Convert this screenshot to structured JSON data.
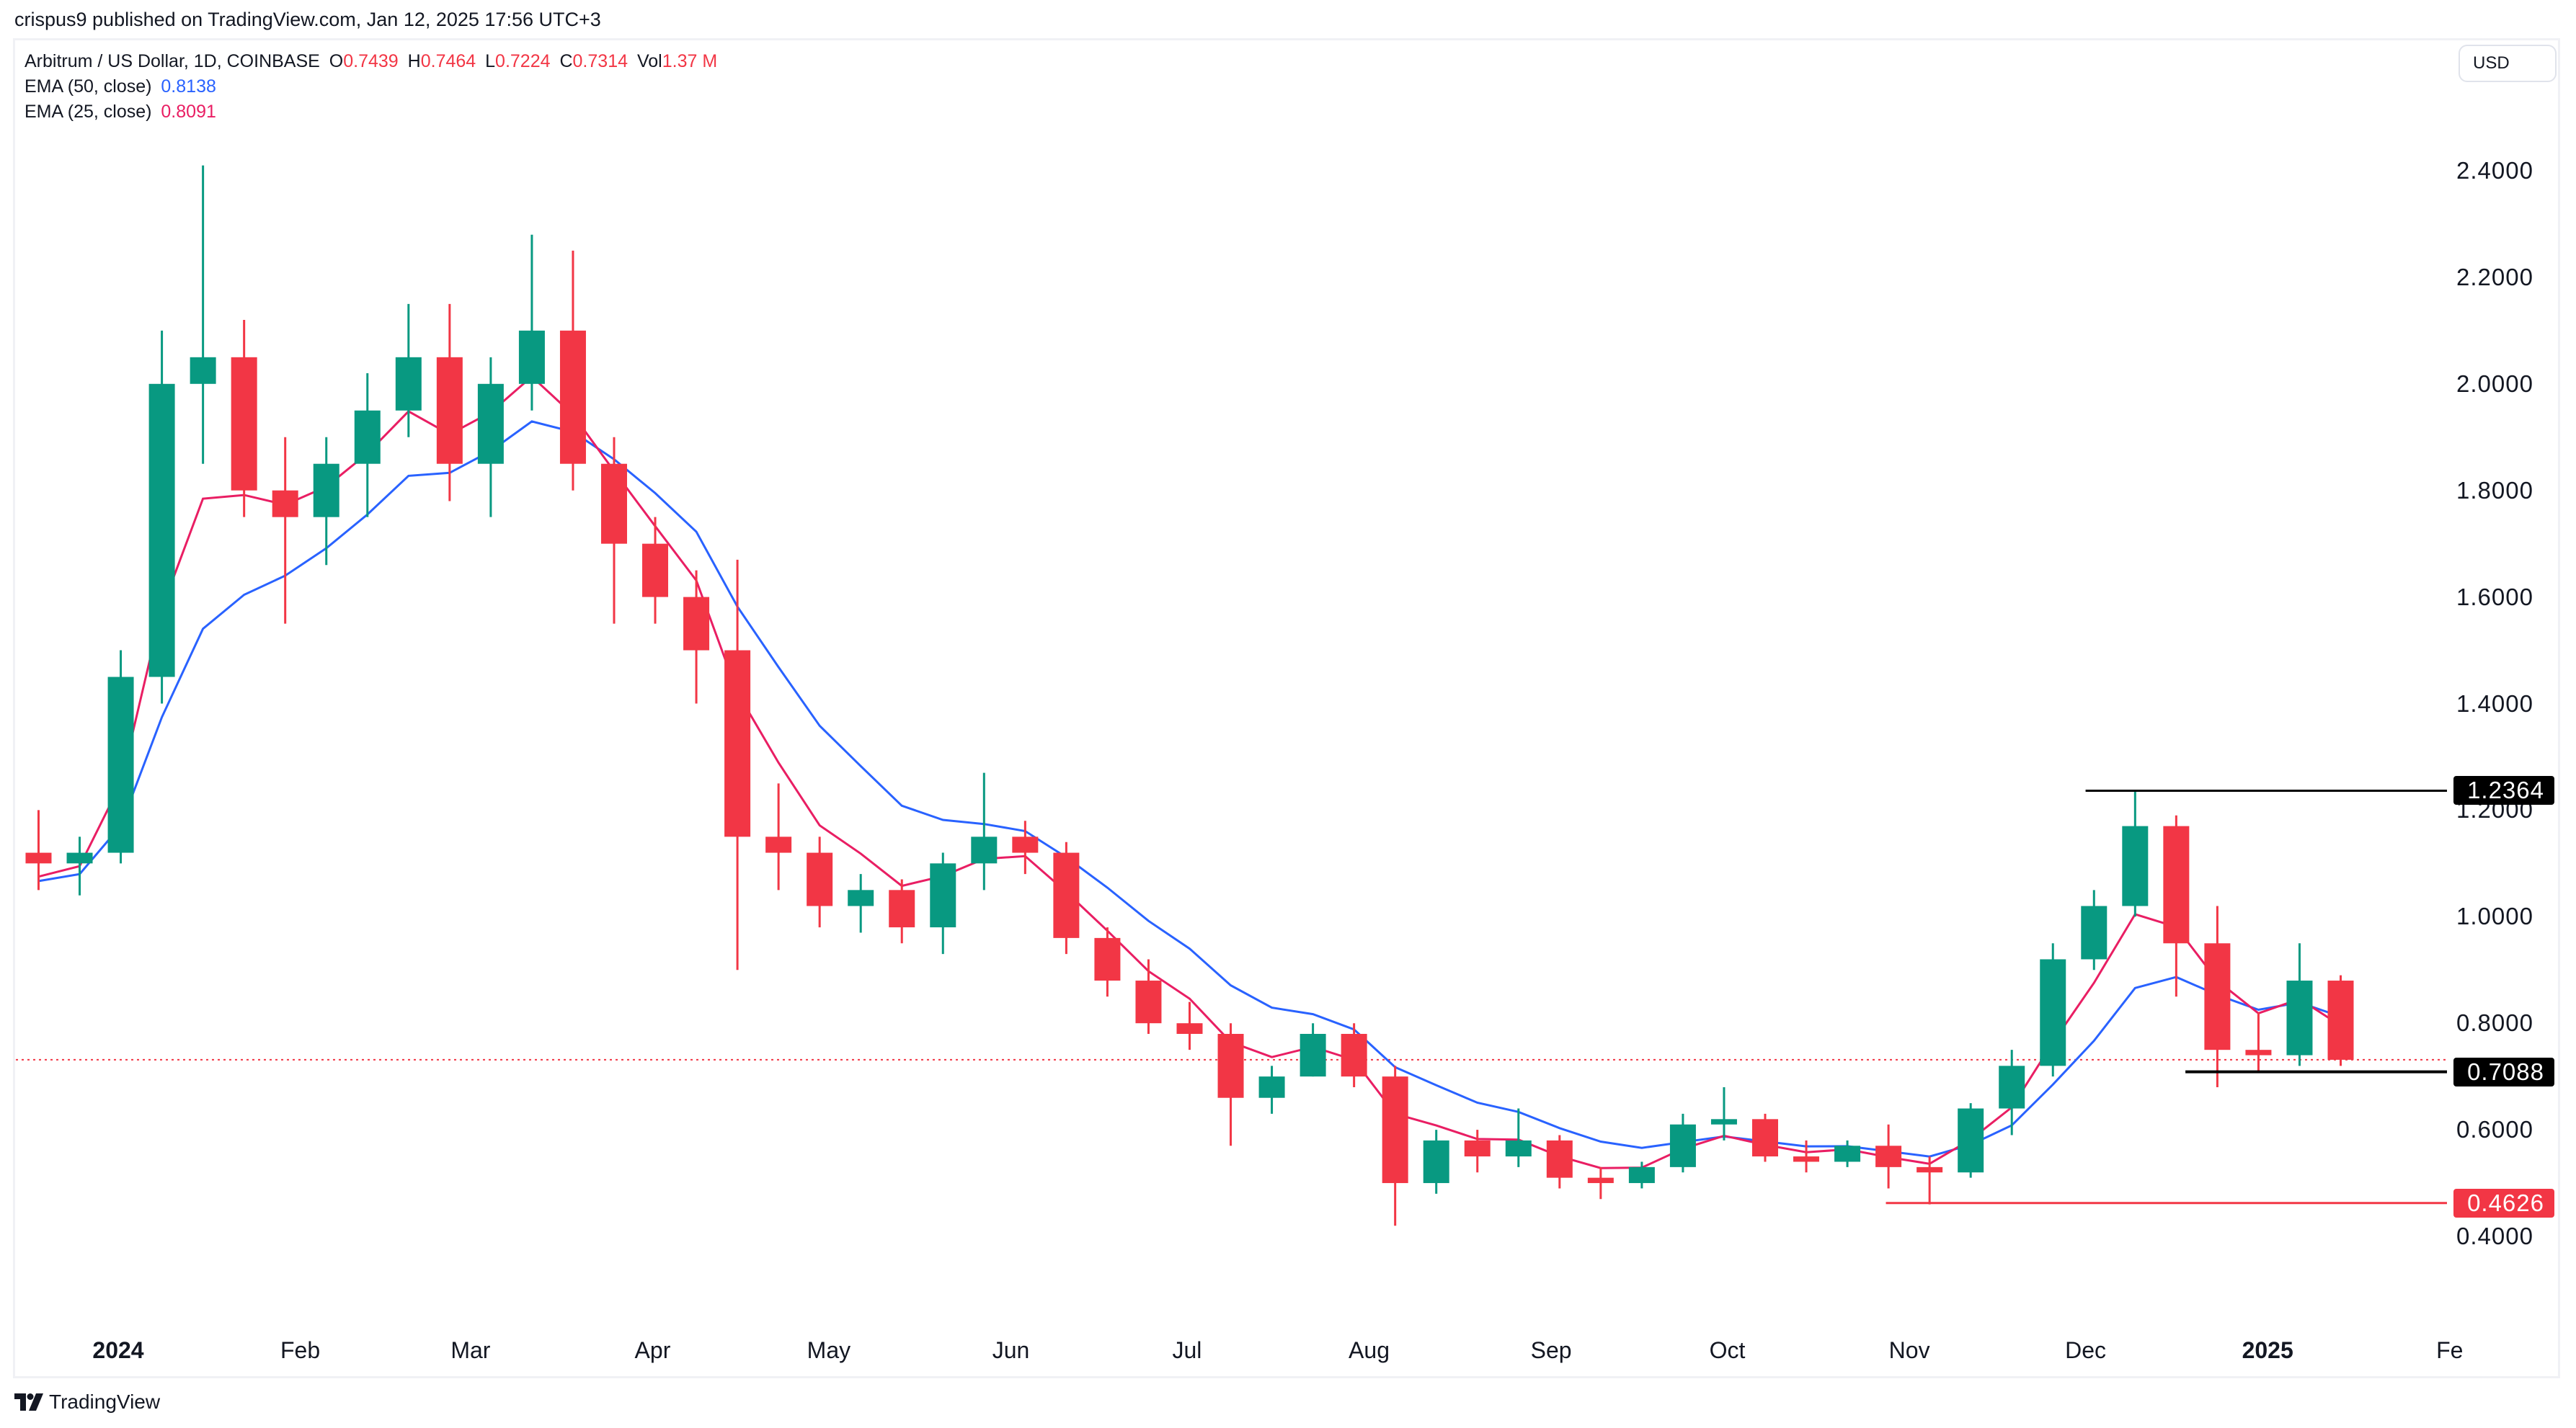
{
  "publisher_line": "crispus9 published on TradingView.com, Jan 12, 2025 17:56 UTC+3",
  "legend": {
    "symbol": "Arbitrum / US Dollar, 1D, COINBASE",
    "o_label": "O",
    "o_value": "0.7439",
    "h_label": "H",
    "h_value": "0.7464",
    "l_label": "L",
    "l_value": "0.7224",
    "c_label": "C",
    "c_value": "0.7314",
    "vol_label": "Vol",
    "vol_value": "1.37 M",
    "ema50_label": "EMA (50, close)",
    "ema50_value": "0.8138",
    "ema25_label": "EMA (25, close)",
    "ema25_value": "0.8091"
  },
  "currency_button": "USD",
  "footer_logo": "TradingView",
  "colors": {
    "up": "#089981",
    "down": "#f23645",
    "ema50": "#2962ff",
    "ema25": "#e91e63",
    "level_black": "#000000",
    "level_red": "#f23645"
  },
  "chart_data": {
    "type": "candlestick",
    "title": "Arbitrum / US Dollar, 1D, COINBASE",
    "ylim": [
      0.3,
      2.5
    ],
    "y_ticks": [
      "2.4000",
      "2.2000",
      "2.0000",
      "1.8000",
      "1.6000",
      "1.4000",
      "1.2000",
      "1.0000",
      "0.8000",
      "0.6000",
      "0.4000"
    ],
    "x_ticks": [
      {
        "label": "2024",
        "date": "2024-01-01",
        "bold": true
      },
      {
        "label": "Feb",
        "date": "2024-02-01"
      },
      {
        "label": "Mar",
        "date": "2024-03-01"
      },
      {
        "label": "Apr",
        "date": "2024-04-01"
      },
      {
        "label": "May",
        "date": "2024-05-01"
      },
      {
        "label": "Jun",
        "date": "2024-06-01"
      },
      {
        "label": "Jul",
        "date": "2024-07-01"
      },
      {
        "label": "Aug",
        "date": "2024-08-01"
      },
      {
        "label": "Sep",
        "date": "2024-09-01"
      },
      {
        "label": "Oct",
        "date": "2024-10-01"
      },
      {
        "label": "Nov",
        "date": "2024-11-01"
      },
      {
        "label": "Dec",
        "date": "2024-12-01"
      },
      {
        "label": "2025",
        "date": "2025-01-01",
        "bold": true
      },
      {
        "label": "Fe",
        "date": "2025-02-01"
      }
    ],
    "xlim": [
      "2023-12-15",
      "2025-02-03"
    ],
    "candles": [
      [
        "2023-12-15",
        1.12,
        1.2,
        1.05,
        1.1
      ],
      [
        "2023-12-22",
        1.1,
        1.15,
        1.04,
        1.12
      ],
      [
        "2023-12-29",
        1.12,
        1.5,
        1.1,
        1.45
      ],
      [
        "2024-01-05",
        1.45,
        2.1,
        1.4,
        2.0
      ],
      [
        "2024-01-12",
        2.0,
        2.41,
        1.85,
        2.05
      ],
      [
        "2024-01-19",
        2.05,
        2.12,
        1.75,
        1.8
      ],
      [
        "2024-01-26",
        1.8,
        1.9,
        1.55,
        1.75
      ],
      [
        "2024-02-02",
        1.75,
        1.9,
        1.66,
        1.85
      ],
      [
        "2024-02-09",
        1.85,
        2.02,
        1.75,
        1.95
      ],
      [
        "2024-02-16",
        1.95,
        2.15,
        1.9,
        2.05
      ],
      [
        "2024-02-23",
        2.05,
        2.15,
        1.78,
        1.85
      ],
      [
        "2024-03-01",
        1.85,
        2.05,
        1.75,
        2.0
      ],
      [
        "2024-03-08",
        2.0,
        2.28,
        1.95,
        2.1
      ],
      [
        "2024-03-15",
        2.1,
        2.25,
        1.8,
        1.85
      ],
      [
        "2024-03-22",
        1.85,
        1.9,
        1.55,
        1.7
      ],
      [
        "2024-03-29",
        1.7,
        1.75,
        1.55,
        1.6
      ],
      [
        "2024-04-05",
        1.6,
        1.65,
        1.4,
        1.5
      ],
      [
        "2024-04-12",
        1.5,
        1.67,
        0.9,
        1.15
      ],
      [
        "2024-04-19",
        1.15,
        1.25,
        1.05,
        1.12
      ],
      [
        "2024-04-26",
        1.12,
        1.15,
        0.98,
        1.02
      ],
      [
        "2024-05-03",
        1.02,
        1.08,
        0.97,
        1.05
      ],
      [
        "2024-05-10",
        1.05,
        1.07,
        0.95,
        0.98
      ],
      [
        "2024-05-17",
        0.98,
        1.12,
        0.93,
        1.1
      ],
      [
        "2024-05-24",
        1.1,
        1.27,
        1.05,
        1.15
      ],
      [
        "2024-05-31",
        1.15,
        1.18,
        1.08,
        1.12
      ],
      [
        "2024-06-07",
        1.12,
        1.14,
        0.93,
        0.96
      ],
      [
        "2024-06-14",
        0.96,
        0.98,
        0.85,
        0.88
      ],
      [
        "2024-06-21",
        0.88,
        0.92,
        0.78,
        0.8
      ],
      [
        "2024-06-28",
        0.8,
        0.84,
        0.75,
        0.78
      ],
      [
        "2024-07-05",
        0.78,
        0.8,
        0.57,
        0.66
      ],
      [
        "2024-07-12",
        0.66,
        0.72,
        0.63,
        0.7
      ],
      [
        "2024-07-19",
        0.7,
        0.8,
        0.7,
        0.78
      ],
      [
        "2024-07-26",
        0.78,
        0.8,
        0.68,
        0.7
      ],
      [
        "2024-08-02",
        0.7,
        0.72,
        0.42,
        0.5
      ],
      [
        "2024-08-09",
        0.5,
        0.6,
        0.48,
        0.58
      ],
      [
        "2024-08-16",
        0.58,
        0.6,
        0.52,
        0.55
      ],
      [
        "2024-08-23",
        0.55,
        0.64,
        0.53,
        0.58
      ],
      [
        "2024-08-30",
        0.58,
        0.59,
        0.49,
        0.51
      ],
      [
        "2024-09-06",
        0.51,
        0.53,
        0.47,
        0.5
      ],
      [
        "2024-09-13",
        0.5,
        0.54,
        0.49,
        0.53
      ],
      [
        "2024-09-20",
        0.53,
        0.63,
        0.52,
        0.61
      ],
      [
        "2024-09-27",
        0.61,
        0.68,
        0.58,
        0.62
      ],
      [
        "2024-10-04",
        0.62,
        0.63,
        0.54,
        0.55
      ],
      [
        "2024-10-11",
        0.55,
        0.58,
        0.52,
        0.54
      ],
      [
        "2024-10-18",
        0.54,
        0.58,
        0.53,
        0.57
      ],
      [
        "2024-10-25",
        0.57,
        0.61,
        0.49,
        0.53
      ],
      [
        "2024-11-01",
        0.53,
        0.55,
        0.46,
        0.52
      ],
      [
        "2024-11-08",
        0.52,
        0.65,
        0.51,
        0.64
      ],
      [
        "2024-11-15",
        0.64,
        0.75,
        0.59,
        0.72
      ],
      [
        "2024-11-22",
        0.72,
        0.95,
        0.7,
        0.92
      ],
      [
        "2024-11-29",
        0.92,
        1.05,
        0.9,
        1.02
      ],
      [
        "2024-12-06",
        1.02,
        1.2364,
        1.0,
        1.17
      ],
      [
        "2024-12-13",
        1.17,
        1.19,
        0.85,
        0.95
      ],
      [
        "2024-12-20",
        0.95,
        1.02,
        0.68,
        0.75
      ],
      [
        "2024-12-27",
        0.75,
        0.82,
        0.7088,
        0.74
      ],
      [
        "2025-01-03",
        0.74,
        0.95,
        0.72,
        0.88
      ],
      [
        "2025-01-10",
        0.88,
        0.89,
        0.72,
        0.7314
      ]
    ],
    "indicators": [
      {
        "name": "EMA (50, close)",
        "period": 50,
        "color": "#2962ff",
        "last": 0.8138
      },
      {
        "name": "EMA (25, close)",
        "period": 25,
        "color": "#e91e63",
        "last": 0.8091
      }
    ],
    "current_price": {
      "value": 0.7314,
      "label": "0.7314"
    },
    "levels": [
      {
        "value": 1.2364,
        "label": "1.2364",
        "from": "2024-12-01",
        "color": "#000000"
      },
      {
        "value": 0.7088,
        "label": "0.7088",
        "from": "2024-12-18",
        "color": "#000000"
      },
      {
        "value": 0.4626,
        "label": "0.4626",
        "from": "2024-10-28",
        "color": "#f23645"
      }
    ]
  }
}
